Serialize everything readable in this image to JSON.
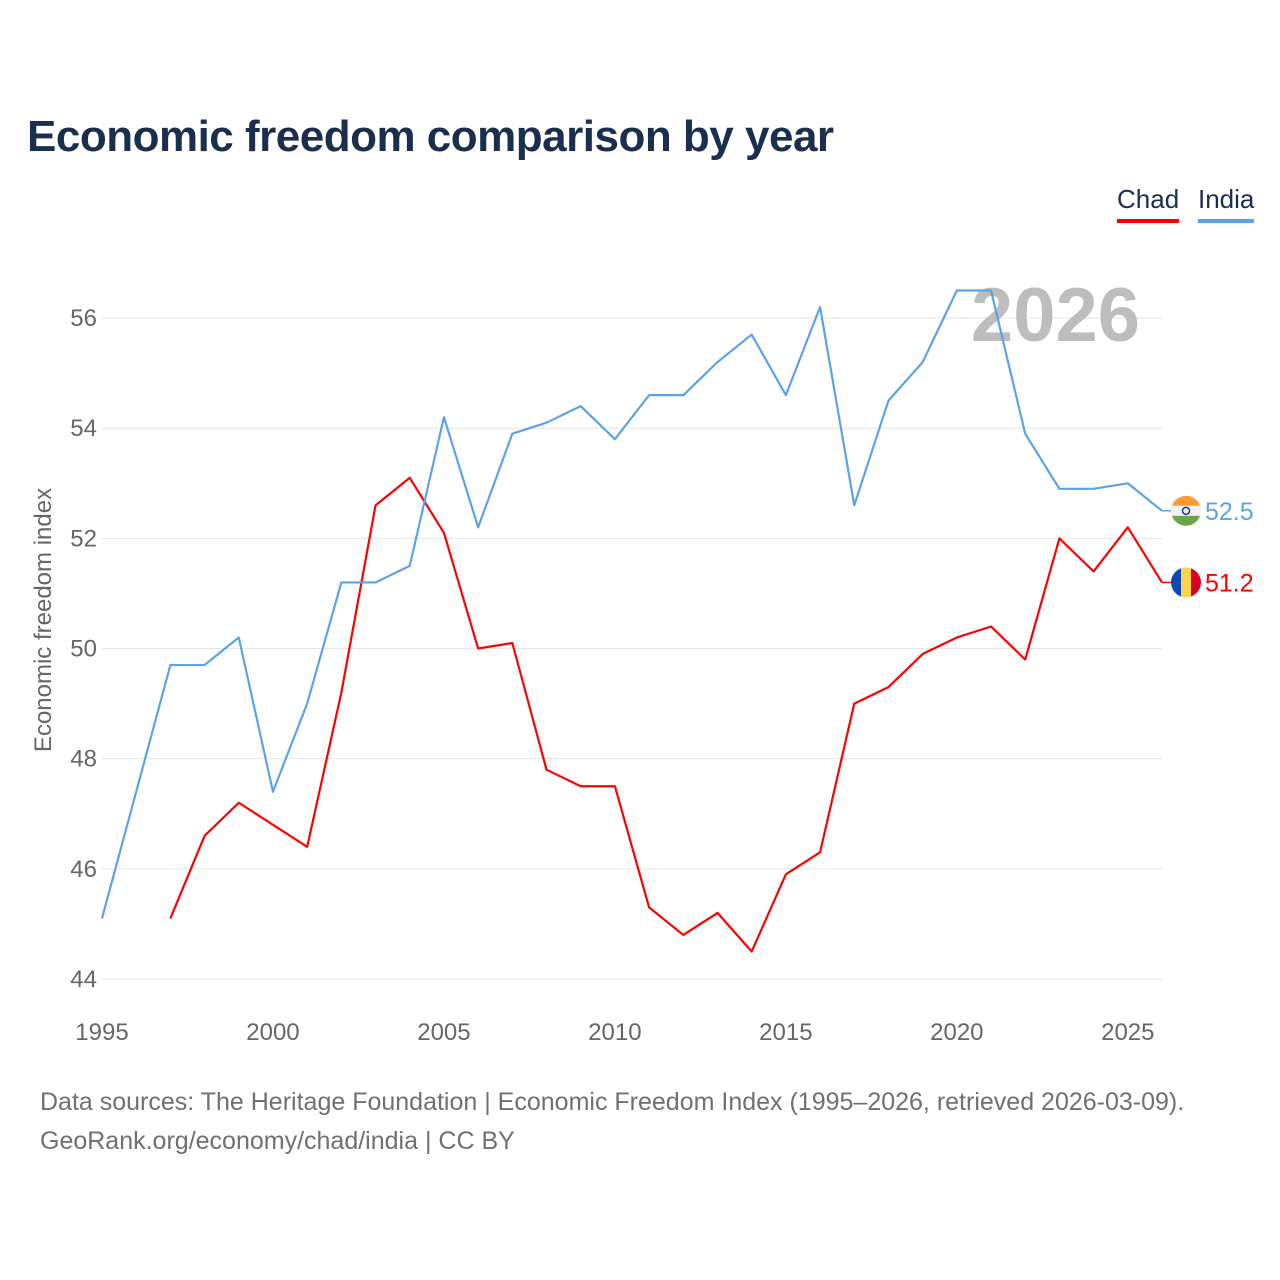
{
  "chart_data": {
    "type": "line",
    "title": "Economic freedom comparison by year",
    "xlabel": "",
    "ylabel": "Economic freedom index",
    "xlim": [
      1995,
      2026
    ],
    "ylim": [
      44,
      56.5
    ],
    "xticks": [
      1995,
      2000,
      2005,
      2010,
      2015,
      2020,
      2025
    ],
    "yticks": [
      44,
      46,
      48,
      50,
      52,
      54,
      56
    ],
    "grid": true,
    "legend_placement": "top-right",
    "year_watermark": "2026",
    "series": [
      {
        "name": "Chad",
        "color": "#ff0000",
        "end_label": "51.2",
        "x": [
          1997,
          1998,
          1999,
          2000,
          2001,
          2002,
          2003,
          2004,
          2005,
          2006,
          2007,
          2008,
          2009,
          2010,
          2011,
          2012,
          2013,
          2014,
          2015,
          2016,
          2017,
          2018,
          2019,
          2020,
          2021,
          2022,
          2023,
          2024,
          2025,
          2026
        ],
        "values": [
          45.1,
          46.6,
          47.2,
          46.8,
          46.4,
          49.2,
          52.6,
          53.1,
          52.1,
          50.0,
          50.1,
          47.8,
          47.5,
          47.5,
          45.3,
          44.8,
          45.2,
          44.5,
          45.9,
          46.3,
          49.0,
          49.3,
          49.9,
          50.2,
          50.4,
          49.8,
          52.0,
          51.4,
          52.2,
          51.2
        ]
      },
      {
        "name": "India",
        "color": "#5ba3e8",
        "end_label": "52.5",
        "x": [
          1995,
          1996,
          1997,
          1998,
          1999,
          2000,
          2001,
          2002,
          2003,
          2004,
          2005,
          2006,
          2007,
          2008,
          2009,
          2010,
          2011,
          2012,
          2013,
          2014,
          2015,
          2016,
          2017,
          2018,
          2019,
          2020,
          2021,
          2022,
          2023,
          2024,
          2025,
          2026
        ],
        "values": [
          45.1,
          47.4,
          49.7,
          49.7,
          50.2,
          47.4,
          49.0,
          51.2,
          51.2,
          51.5,
          54.2,
          52.2,
          53.9,
          54.1,
          54.4,
          53.8,
          54.6,
          54.6,
          55.2,
          55.7,
          54.6,
          56.2,
          52.6,
          54.5,
          55.2,
          56.5,
          56.5,
          53.9,
          52.9,
          52.9,
          53.0,
          52.5
        ]
      }
    ]
  },
  "legend": {
    "chad": "Chad",
    "india": "India"
  },
  "footer": {
    "line1": "Data sources: The Heritage Foundation | Economic Freedom Index (1995–2026, retrieved 2026-03-09).",
    "line2": "GeoRank.org/economy/chad/india | CC BY"
  }
}
